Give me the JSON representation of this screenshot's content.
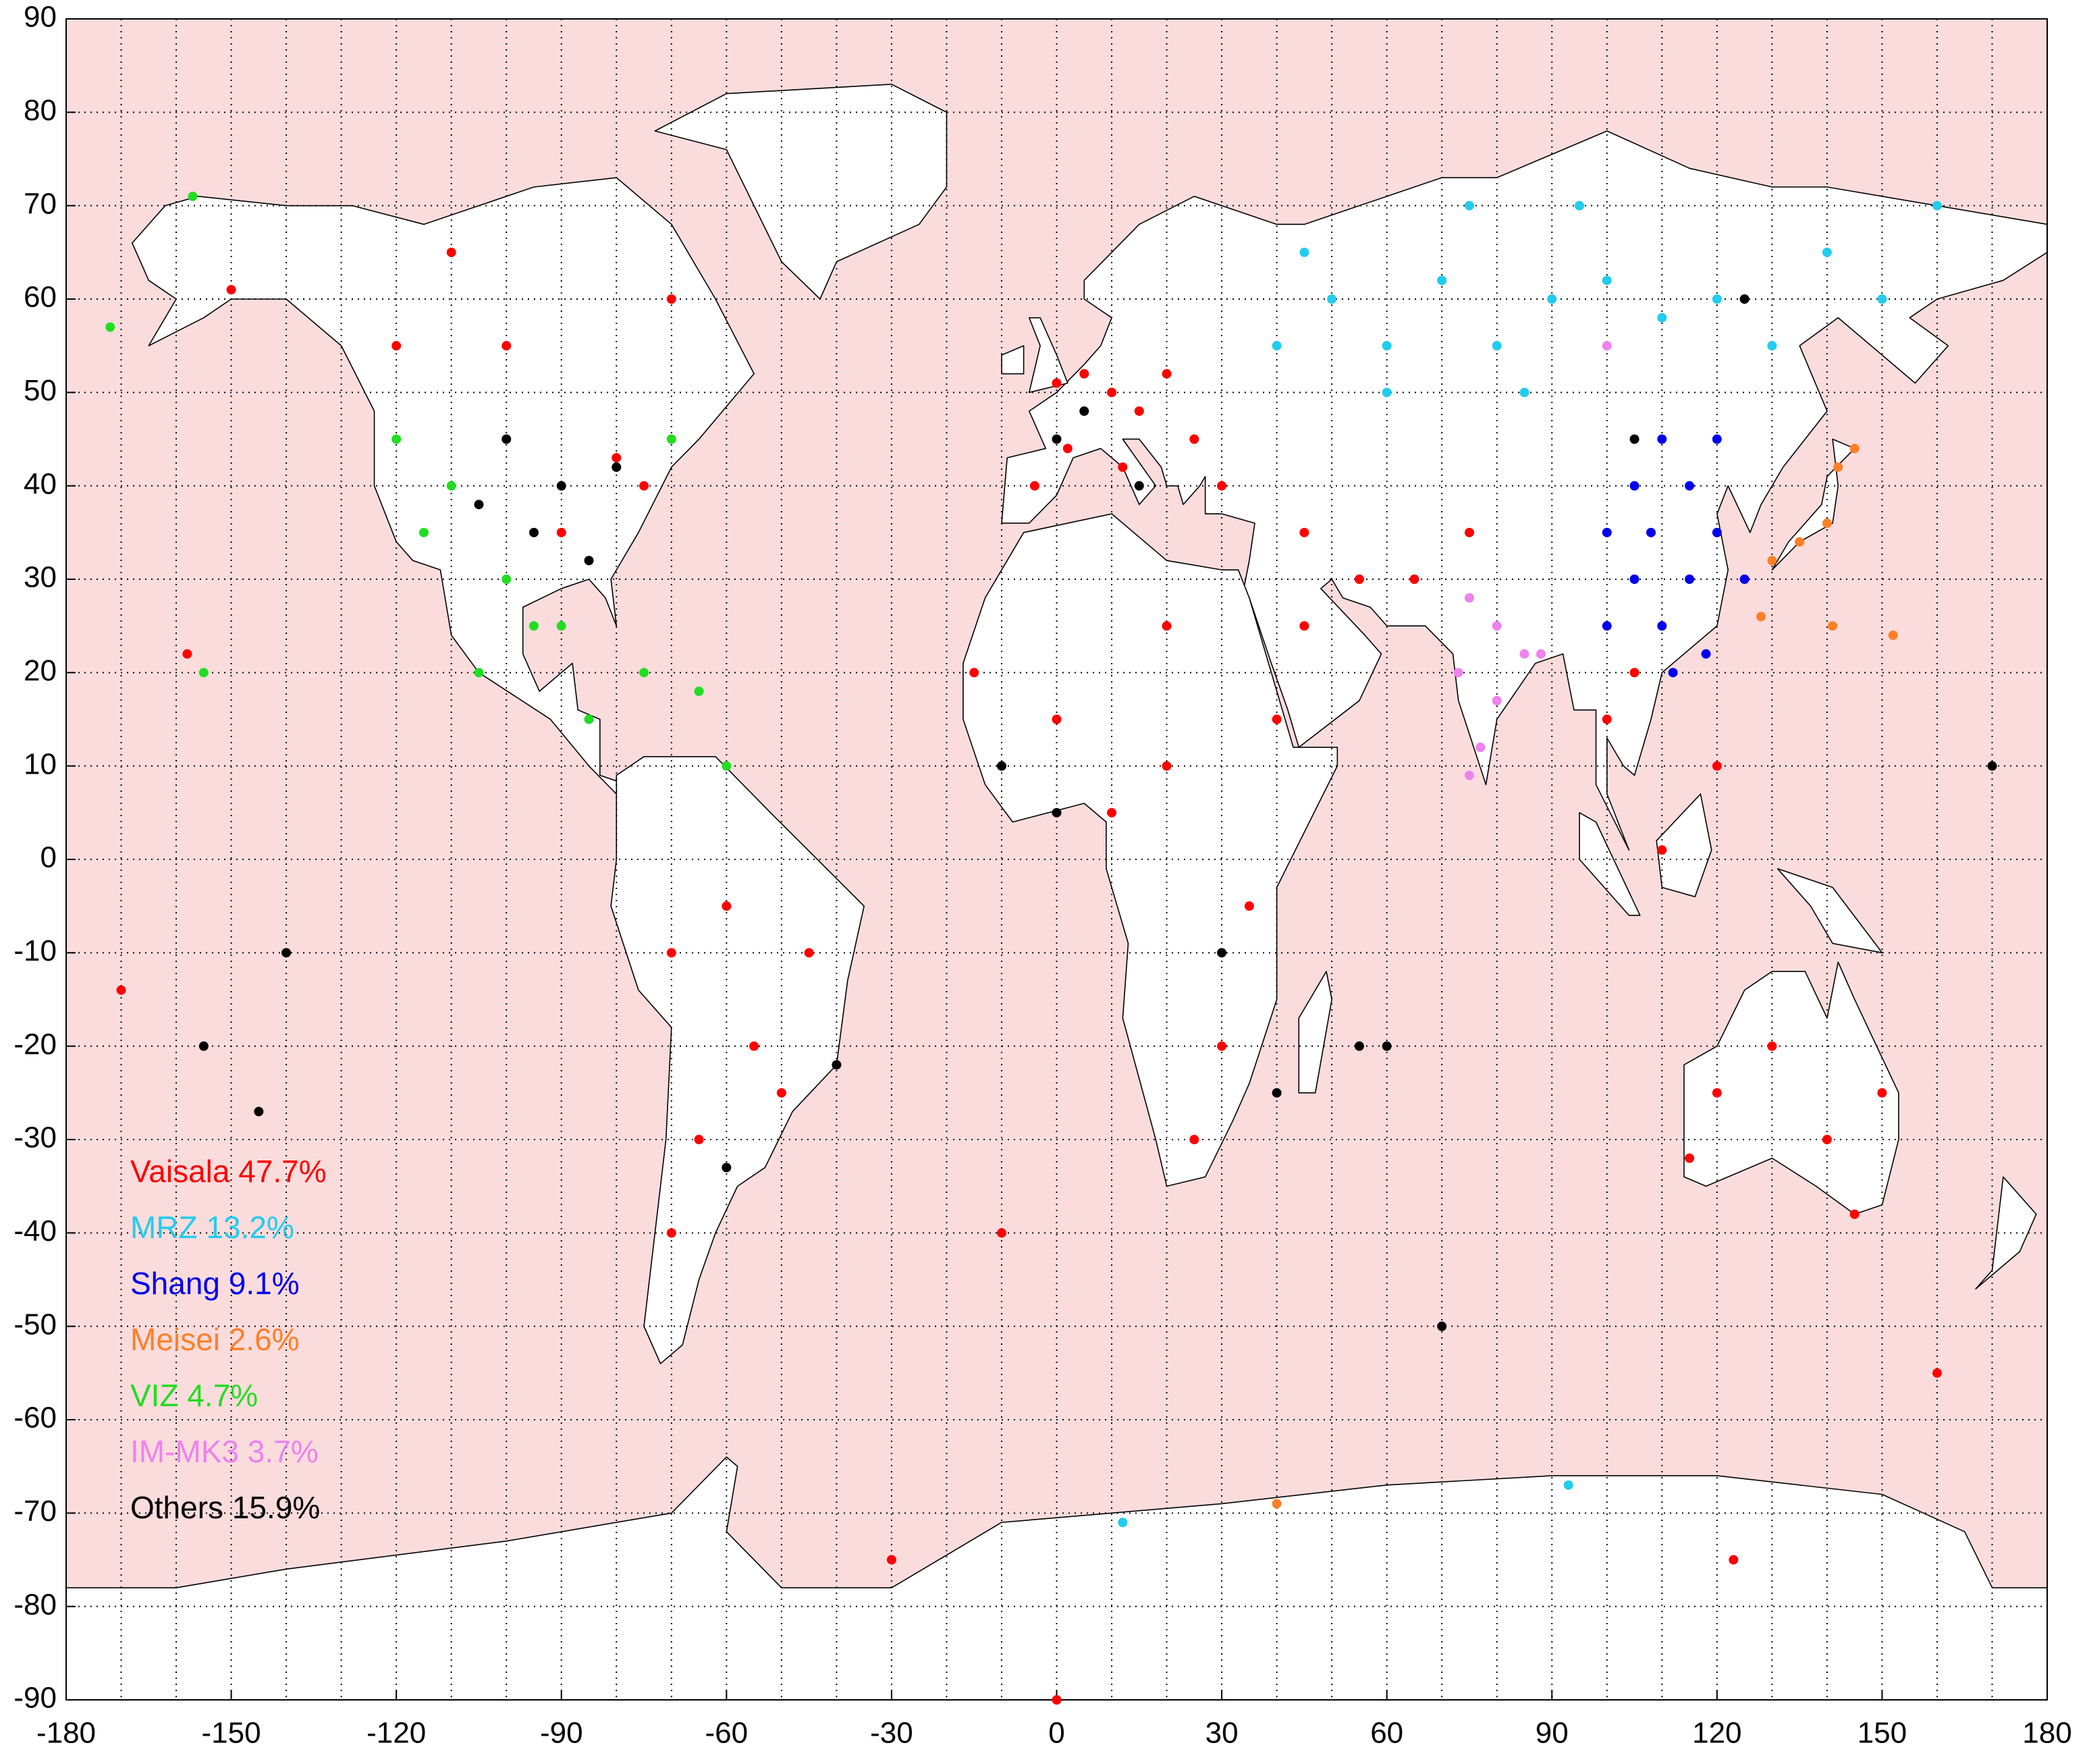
{
  "chart_data": {
    "type": "scatter",
    "xlim": [
      -180,
      180
    ],
    "ylim": [
      -90,
      90
    ],
    "xticks": [
      -180,
      -150,
      -120,
      -90,
      -60,
      -30,
      0,
      30,
      60,
      90,
      120,
      150,
      180
    ],
    "yticks": [
      -90,
      -80,
      -70,
      -60,
      -50,
      -40,
      -30,
      -20,
      -10,
      0,
      10,
      20,
      30,
      40,
      50,
      60,
      70,
      80,
      90
    ],
    "xgrid": [
      -170,
      -160,
      -150,
      -140,
      -130,
      -120,
      -110,
      -100,
      -90,
      -80,
      -70,
      -60,
      -50,
      -40,
      -30,
      -20,
      -10,
      0,
      10,
      20,
      30,
      40,
      50,
      60,
      70,
      80,
      90,
      100,
      110,
      120,
      130,
      140,
      150,
      160,
      170
    ],
    "ygrid": [
      -80,
      -70,
      -60,
      -50,
      -40,
      -30,
      -20,
      -10,
      0,
      10,
      20,
      30,
      40,
      50,
      60,
      70,
      80
    ],
    "grid": true,
    "series": [
      {
        "name": "Vaisala 47.7%",
        "color": "#ff0000",
        "x": [
          0,
          5,
          10,
          15,
          20,
          25,
          2,
          -4,
          12,
          30,
          45,
          55,
          45,
          40,
          -150,
          -100,
          -80,
          -90,
          -75,
          -120,
          -110,
          -70,
          -60,
          -45,
          -50,
          -65,
          -70,
          -55,
          -70,
          0,
          10,
          20,
          30,
          25,
          35,
          -15,
          20,
          120,
          130,
          140,
          150,
          145,
          115,
          100,
          105,
          120,
          110,
          75,
          65,
          -158,
          -170,
          -30,
          123,
          160,
          -10,
          0
        ],
        "y": [
          51,
          52,
          50,
          48,
          52,
          45,
          44,
          40,
          42,
          40,
          35,
          30,
          25,
          15,
          61,
          55,
          43,
          35,
          40,
          55,
          65,
          60,
          -5,
          -10,
          -25,
          -30,
          -40,
          -20,
          -10,
          15,
          5,
          10,
          -20,
          -30,
          -5,
          20,
          25,
          -25,
          -20,
          -30,
          -25,
          -38,
          -32,
          15,
          20,
          10,
          1,
          35,
          30,
          22,
          -14,
          -75,
          -75,
          -55,
          -40,
          -90
        ]
      },
      {
        "name": "MRZ 13.2%",
        "color": "#22ccee",
        "x": [
          40,
          50,
          60,
          70,
          80,
          90,
          100,
          110,
          120,
          130,
          140,
          150,
          160,
          75,
          95,
          60,
          85,
          45,
          12,
          93
        ],
        "y": [
          55,
          60,
          55,
          62,
          55,
          60,
          62,
          58,
          60,
          55,
          65,
          60,
          70,
          70,
          70,
          50,
          50,
          65,
          -71,
          -67
        ]
      },
      {
        "name": "Shang  9.1%",
        "color": "#0000ee",
        "x": [
          100,
          105,
          110,
          115,
          120,
          115,
          110,
          120,
          105,
          125,
          100,
          118,
          108,
          112
        ],
        "y": [
          35,
          30,
          25,
          30,
          35,
          40,
          45,
          45,
          40,
          30,
          25,
          22,
          35,
          20
        ]
      },
      {
        "name": "Meisei  2.6%",
        "color": "#ff7f27",
        "x": [
          140,
          142,
          135,
          130,
          128,
          145,
          152,
          141,
          40
        ],
        "y": [
          36,
          42,
          34,
          32,
          26,
          44,
          24,
          25,
          -69
        ]
      },
      {
        "name": "VIZ  4.7%",
        "color": "#22dd22",
        "x": [
          -120,
          -110,
          -115,
          -100,
          -95,
          -105,
          -90,
          -75,
          -65,
          -60,
          -85,
          -155,
          -172,
          -157,
          -70
        ],
        "y": [
          45,
          40,
          35,
          30,
          25,
          20,
          25,
          20,
          18,
          10,
          15,
          20,
          57,
          71,
          45
        ]
      },
      {
        "name": "IM-MK3  3.7%",
        "color": "#ee82ee",
        "x": [
          73,
          77,
          80,
          85,
          75,
          88,
          80,
          75,
          100
        ],
        "y": [
          20,
          12,
          25,
          22,
          28,
          22,
          17,
          9,
          55
        ]
      },
      {
        "name": "Others 15.9%",
        "color": "#000000",
        "x": [
          -100,
          -90,
          -95,
          -85,
          -105,
          -80,
          0,
          5,
          15,
          -10,
          0,
          30,
          40,
          60,
          -140,
          -145,
          -155,
          -60,
          -40,
          170,
          70,
          55,
          125,
          105
        ],
        "y": [
          45,
          40,
          35,
          32,
          38,
          42,
          45,
          48,
          40,
          10,
          5,
          -10,
          -25,
          -20,
          -10,
          -27,
          -20,
          -33,
          -22,
          10,
          -50,
          -20,
          60,
          45
        ]
      }
    ]
  }
}
